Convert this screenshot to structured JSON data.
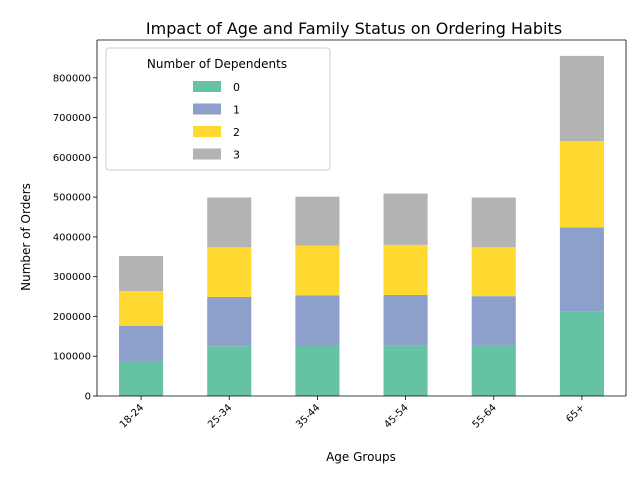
{
  "chart_data": {
    "type": "bar",
    "stacked": true,
    "title": "Impact of Age and Family Status on Ordering Habits",
    "xlabel": "Age Groups",
    "ylabel": "Number of Orders",
    "categories": [
      "18-24",
      "25-34",
      "35-44",
      "45-54",
      "55-64",
      "65+"
    ],
    "series": [
      {
        "name": "0",
        "color": "#66c2a5",
        "values": [
          88000,
          125000,
          127000,
          128000,
          126000,
          212000
        ]
      },
      {
        "name": "1",
        "color": "#8da0cb",
        "values": [
          88000,
          124000,
          126000,
          126000,
          125000,
          212000
        ]
      },
      {
        "name": "2",
        "color": "#ffd92f",
        "values": [
          88000,
          125000,
          125000,
          126000,
          123000,
          217000
        ]
      },
      {
        "name": "3",
        "color": "#b3b3b3",
        "values": [
          88000,
          125000,
          123000,
          129000,
          125000,
          214000
        ]
      }
    ],
    "ylim": [
      0,
      895000
    ],
    "yticks": [
      0,
      100000,
      200000,
      300000,
      400000,
      500000,
      600000,
      700000,
      800000
    ],
    "legend": {
      "title": "Number of Dependents",
      "position": "top-left"
    },
    "grid": false
  }
}
